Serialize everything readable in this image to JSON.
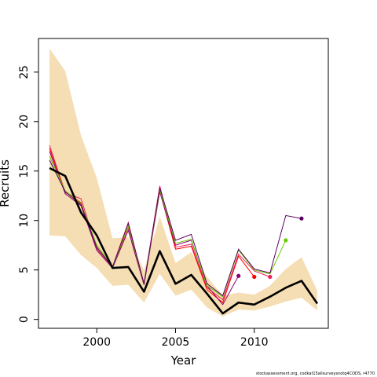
{
  "chart_data": {
    "type": "line",
    "xlabel": "Year",
    "ylabel": "Recruits",
    "xlim": [
      1996.3,
      2014.7
    ],
    "ylim": [
      -0.9,
      28.4
    ],
    "xticks": [
      2000,
      2005,
      2010
    ],
    "yticks": [
      0,
      5,
      10,
      15,
      20,
      25
    ],
    "grid": false,
    "colors": {
      "band": "#f5deb3",
      "main": "#000000",
      "frame": "#000000"
    },
    "band": {
      "x": [
        1997,
        1998,
        1999,
        2000,
        2001,
        2002,
        2003,
        2004,
        2005,
        2006,
        2007,
        2008,
        2009,
        2010,
        2011,
        2012,
        2013,
        2014
      ],
      "upper": [
        27.4,
        25.1,
        18.6,
        14.3,
        8.2,
        8.3,
        5.0,
        10.4,
        5.7,
        6.8,
        4.3,
        2.4,
        2.7,
        2.5,
        3.4,
        5.1,
        6.3,
        2.9
      ],
      "lower": [
        8.5,
        8.4,
        6.5,
        5.2,
        3.4,
        3.5,
        1.7,
        4.6,
        2.4,
        3.0,
        1.2,
        0.3,
        1.0,
        0.9,
        1.3,
        1.8,
        2.2,
        0.9
      ]
    },
    "main_series": {
      "x": [
        1997,
        1998,
        1999,
        2000,
        2001,
        2002,
        2003,
        2004,
        2005,
        2006,
        2007,
        2008,
        2009,
        2010,
        2011,
        2012,
        2013,
        2014
      ],
      "y": [
        15.3,
        14.5,
        10.8,
        8.5,
        5.2,
        5.3,
        2.8,
        6.9,
        3.6,
        4.5,
        2.6,
        0.6,
        1.7,
        1.5,
        2.3,
        3.2,
        3.9,
        1.6
      ]
    },
    "retrospective_series": [
      {
        "color": "#f02060",
        "x": [
          1997,
          1998,
          1999,
          2000,
          2001,
          2002,
          2003,
          2004,
          2005,
          2006,
          2007,
          2008,
          2009,
          2010,
          2011
        ],
        "y": [
          17.6,
          12.8,
          12.2,
          7.2,
          5.3,
          9.8,
          3.6,
          13.5,
          7.3,
          7.6,
          3.2,
          2.0,
          6.6,
          4.9,
          4.3
        ],
        "end_point": true
      },
      {
        "color": "#ff0000",
        "x": [
          1997,
          1998,
          1999,
          2000,
          2001,
          2002,
          2003,
          2004,
          2005,
          2006,
          2007,
          2008,
          2009,
          2010
        ],
        "y": [
          17.3,
          12.9,
          11.8,
          7.0,
          5.2,
          9.3,
          3.5,
          13.0,
          7.1,
          7.4,
          3.0,
          1.7,
          6.4,
          4.3
        ],
        "end_point": true
      },
      {
        "color": "#8b0070",
        "x": [
          1997,
          1998,
          1999,
          2000,
          2001,
          2002,
          2003,
          2004,
          2005,
          2006,
          2007,
          2008,
          2009
        ],
        "y": [
          17.0,
          12.7,
          11.5,
          7.0,
          5.2,
          9.0,
          3.5,
          12.9,
          7.5,
          8.0,
          3.4,
          1.5,
          4.4
        ],
        "end_point": true
      },
      {
        "color": "#66cc00",
        "x": [
          1997,
          1998,
          1999,
          2000,
          2001,
          2002,
          2003,
          2004,
          2005,
          2006,
          2007,
          2008,
          2009,
          2010,
          2011,
          2012
        ],
        "y": [
          16.5,
          13.0,
          11.7,
          7.5,
          5.3,
          9.4,
          3.6,
          13.1,
          7.7,
          8.1,
          3.4,
          2.3,
          7.0,
          5.0,
          4.6,
          8.0
        ],
        "end_point": true
      },
      {
        "color": "#5a0060",
        "x": [
          1997,
          1998,
          1999,
          2000,
          2001,
          2002,
          2003,
          2004,
          2005,
          2006,
          2007,
          2008,
          2009,
          2010,
          2011,
          2012,
          2013
        ],
        "y": [
          16.1,
          12.9,
          11.6,
          7.3,
          5.3,
          9.7,
          3.6,
          13.3,
          8.0,
          8.6,
          3.6,
          2.4,
          7.1,
          5.1,
          4.7,
          10.5,
          10.2
        ],
        "end_point": true
      }
    ]
  },
  "footnote": "stockassessment.org, codkat15allsurveysnotq4CODS, r4770"
}
